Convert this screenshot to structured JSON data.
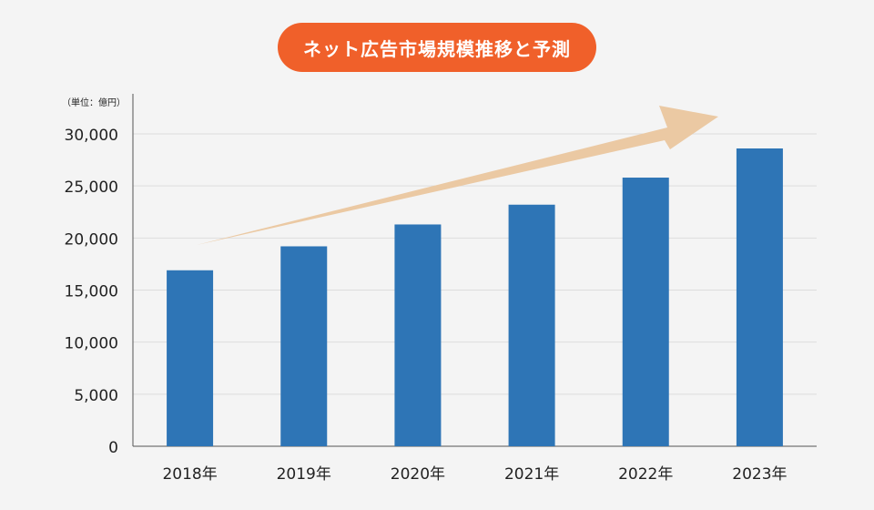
{
  "chart_data": {
    "type": "bar",
    "title": "ネット広告市場規模推移と予測",
    "unit_label": "（単位：億円）",
    "categories": [
      "2018年",
      "2019年",
      "2020年",
      "2021年",
      "2022年",
      "2023年"
    ],
    "values": [
      16900,
      19200,
      21300,
      23200,
      25800,
      28600
    ],
    "y_ticks": [
      "0",
      "5,000",
      "10,000",
      "15,000",
      "20,000",
      "25,000",
      "30,000"
    ],
    "y_tick_values": [
      0,
      5000,
      10000,
      15000,
      20000,
      25000,
      30000
    ],
    "ylim": [
      0,
      30000
    ],
    "grid": true,
    "trend_arrow": true,
    "colors": {
      "bar": "#2e75b6",
      "title_bg": "#f0602a",
      "arrow": "#ebc9a3",
      "grid": "#dddddd",
      "axis": "#555555",
      "background": "#f4f4f4"
    }
  }
}
